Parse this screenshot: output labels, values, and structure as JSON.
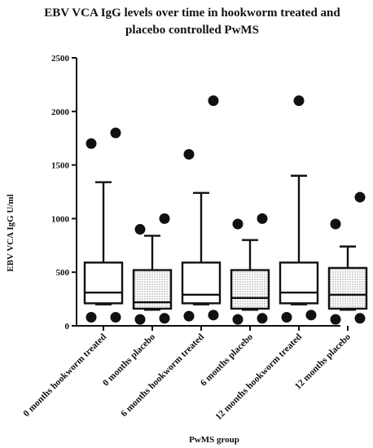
{
  "chart_data": {
    "type": "box",
    "title_lines": [
      "EBV VCA IgG levels over time in hookworm treated and",
      "placebo controlled PwMS"
    ],
    "xlabel": "PwMS group",
    "ylabel": "EBV VCA IgG U/ml",
    "ylim": [
      0,
      2500
    ],
    "yticks": [
      "0",
      "500",
      "1000",
      "1500",
      "2000",
      "2500"
    ],
    "grid": false,
    "legend": "none",
    "categories": [
      "0 months hookworm treated",
      "0 months placebo",
      "6 months hookworm treated",
      "6 months placebo",
      "12 months hookworm treated",
      "12 months placebo"
    ],
    "boxes": [
      {
        "whisker_low": 200,
        "q1": 210,
        "median": 310,
        "q3": 590,
        "whisker_high": 1340,
        "fill": "white",
        "outliers": [
          80,
          80,
          1700,
          1800
        ]
      },
      {
        "whisker_low": 150,
        "q1": 160,
        "median": 220,
        "q3": 520,
        "whisker_high": 840,
        "fill": "dotted",
        "outliers": [
          60,
          70,
          900,
          1000
        ]
      },
      {
        "whisker_low": 200,
        "q1": 210,
        "median": 290,
        "q3": 590,
        "whisker_high": 1240,
        "fill": "white",
        "outliers": [
          90,
          100,
          1600,
          2100
        ]
      },
      {
        "whisker_low": 150,
        "q1": 160,
        "median": 260,
        "q3": 520,
        "whisker_high": 800,
        "fill": "dotted",
        "outliers": [
          60,
          70,
          950,
          1000
        ]
      },
      {
        "whisker_low": 200,
        "q1": 210,
        "median": 310,
        "q3": 590,
        "whisker_high": 1400,
        "fill": "white",
        "outliers": [
          80,
          100,
          2100
        ]
      },
      {
        "whisker_low": 150,
        "q1": 160,
        "median": 290,
        "q3": 540,
        "whisker_high": 740,
        "fill": "dotted",
        "outliers": [
          60,
          70,
          950,
          1200
        ]
      }
    ]
  }
}
